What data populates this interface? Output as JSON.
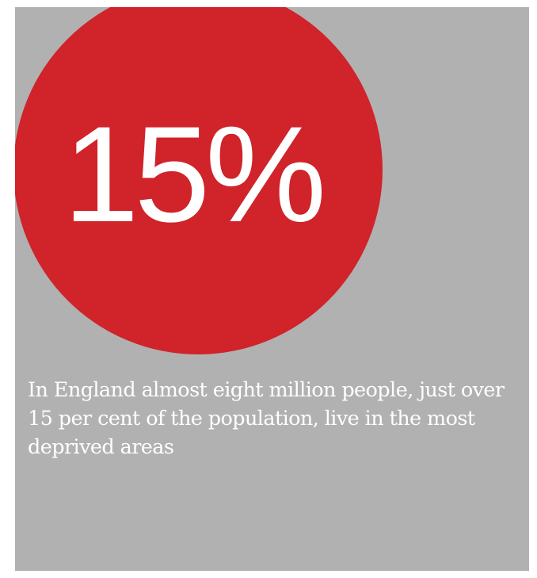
{
  "infographic": {
    "stat_value": "15%",
    "caption": "In England almost eight million people, just over 15 per cent of the population, live in the most deprived areas",
    "colors": {
      "panel_background": "#b1b1b1",
      "circle": "#d0232a",
      "text": "#ffffff"
    }
  }
}
